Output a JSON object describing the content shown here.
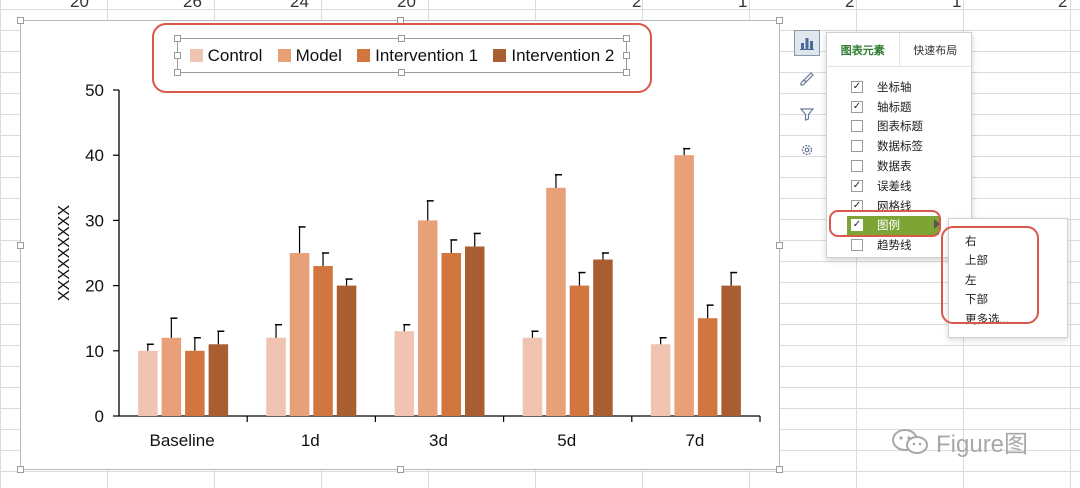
{
  "sheet": {
    "ruler_numbers": [
      "20",
      "26",
      "24",
      "20",
      "2",
      "1",
      "2",
      "1",
      "2"
    ]
  },
  "chart_data": {
    "type": "bar",
    "categories": [
      "Baseline",
      "1d",
      "3d",
      "5d",
      "7d"
    ],
    "series": [
      {
        "name": "Control",
        "color": "#f0c4b0",
        "values": [
          10,
          12,
          13,
          12,
          11
        ],
        "errors": [
          1,
          2,
          1,
          1,
          1
        ]
      },
      {
        "name": "Model",
        "color": "#e8a078",
        "values": [
          12,
          25,
          30,
          35,
          40
        ],
        "errors": [
          3,
          4,
          3,
          2,
          1
        ]
      },
      {
        "name": "Intervention 1",
        "color": "#d0763e",
        "values": [
          10,
          23,
          25,
          20,
          15
        ],
        "errors": [
          2,
          2,
          2,
          2,
          2
        ]
      },
      {
        "name": "Intervention 2",
        "color": "#a85e30",
        "values": [
          11,
          20,
          26,
          24,
          20
        ],
        "errors": [
          2,
          1,
          2,
          1,
          2
        ]
      }
    ],
    "ylabel": "XXXXXXXXX",
    "xlabel": "",
    "ylim": [
      0,
      50
    ],
    "yticks": [
      "0",
      "10",
      "20",
      "30",
      "40",
      "50"
    ],
    "legend_position": "top",
    "error_bars": true,
    "grid": false
  },
  "panel": {
    "tab_elements": "图表元素",
    "tab_layout": "快速布局",
    "items": [
      {
        "label": "坐标轴",
        "checked": true
      },
      {
        "label": "轴标题",
        "checked": true
      },
      {
        "label": "图表标题",
        "checked": false
      },
      {
        "label": "数据标签",
        "checked": false
      },
      {
        "label": "数据表",
        "checked": false
      },
      {
        "label": "误差线",
        "checked": true
      },
      {
        "label": "网格线",
        "checked": true
      },
      {
        "label": "图例",
        "checked": true
      },
      {
        "label": "趋势线",
        "checked": false
      }
    ]
  },
  "submenu": {
    "items": [
      "右",
      "上部",
      "左",
      "下部",
      "更多选..."
    ]
  },
  "watermark": {
    "text": "Figure图"
  },
  "icons": {
    "chart_elements": "chart-elements-icon",
    "style": "brush-icon",
    "filter": "filter-icon",
    "settings": "gear-icon",
    "watermark": "wechat-icon"
  }
}
